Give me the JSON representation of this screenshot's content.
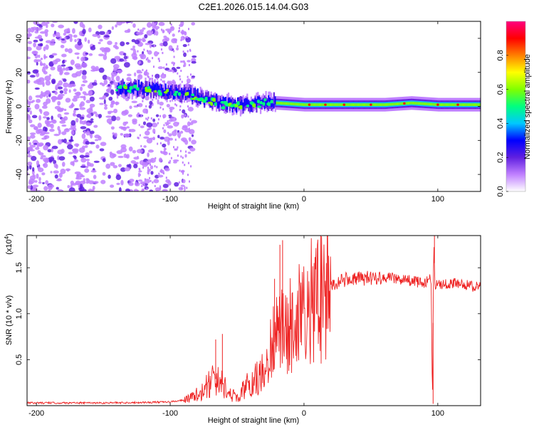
{
  "chart_data": [
    {
      "type": "heatmap",
      "title": "C2E1.2026.015.14.04.G03",
      "xlabel": "Height of straight line (km)",
      "ylabel": "Frequency (Hz)",
      "xlim": [
        -207,
        132
      ],
      "ylim": [
        -50,
        50
      ],
      "xticks": [
        -200,
        -100,
        0,
        100
      ],
      "yticks": [
        -40,
        -20,
        0,
        20,
        40
      ],
      "colorbar": {
        "label": "Normalized spectral amplitude",
        "range": [
          0.0,
          1.0
        ],
        "ticks": [
          "0.0",
          "0.2",
          "0.4",
          "0.6",
          "0.8"
        ],
        "tick_values": [
          0.0,
          0.2,
          0.4,
          0.6,
          0.8
        ],
        "colors": [
          "#ffffff",
          "#c080ff",
          "#6020e0",
          "#0000ff",
          "#00c8ff",
          "#00ff80",
          "#80ff00",
          "#ffff00",
          "#ff8000",
          "#ff0000",
          "#ff0080"
        ]
      },
      "ridge": {
        "x": [
          -130,
          -120,
          -110,
          -100,
          -90,
          -80,
          -70,
          -60,
          -50,
          -40,
          -30,
          -20,
          0,
          20,
          40,
          60,
          80,
          100,
          132
        ],
        "frequency": [
          10,
          10,
          9,
          8,
          7,
          5,
          3,
          1,
          0,
          0,
          2,
          2,
          1,
          1,
          1,
          1,
          2,
          1,
          1
        ]
      }
    },
    {
      "type": "line",
      "xlabel": "Height of straight line (km)",
      "ylabel": "SNR (10 * v/v)",
      "y_scale_label": "(x10",
      "y_scale_exponent": "4",
      "y_scale_suffix": ")",
      "xlim": [
        -207,
        132
      ],
      "ylim": [
        0,
        1.85
      ],
      "xticks": [
        -200,
        -100,
        0,
        100
      ],
      "yticks": [
        0.5,
        1.0,
        1.5
      ],
      "ytick_labels": [
        "0.5",
        "1.0",
        "1.5"
      ],
      "color": "#ee2222",
      "series": [
        {
          "name": "SNR",
          "x": [
            -207,
            -180,
            -150,
            -120,
            -100,
            -90,
            -85,
            -80,
            -75,
            -70,
            -65,
            -60,
            -55,
            -50,
            -45,
            -40,
            -35,
            -30,
            -25,
            -20,
            -15,
            -10,
            -5,
            0,
            5,
            10,
            15,
            20,
            30,
            40,
            50,
            60,
            70,
            80,
            90,
            95,
            96,
            97,
            98,
            100,
            110,
            120,
            132
          ],
          "values": [
            0.03,
            0.03,
            0.03,
            0.035,
            0.04,
            0.06,
            0.08,
            0.12,
            0.18,
            0.25,
            0.3,
            0.22,
            0.12,
            0.1,
            0.18,
            0.25,
            0.3,
            0.42,
            0.6,
            0.75,
            0.85,
            0.95,
            1.0,
            1.0,
            1.1,
            1.15,
            1.2,
            1.3,
            1.37,
            1.38,
            1.39,
            1.4,
            1.38,
            1.36,
            1.33,
            1.4,
            0.0,
            1.8,
            1.3,
            1.32,
            1.33,
            1.32,
            1.28
          ],
          "spikes": [
            {
              "x": -66,
              "value": 0.72
            },
            {
              "x": -61,
              "value": 0.78
            },
            {
              "x": -22,
              "value": 1.38
            },
            {
              "x": -18,
              "value": 1.75
            },
            {
              "x": -16,
              "value": 1.8
            },
            {
              "x": 96.5,
              "value": 0.02
            },
            {
              "x": 97.5,
              "value": 1.85
            }
          ]
        }
      ]
    }
  ]
}
